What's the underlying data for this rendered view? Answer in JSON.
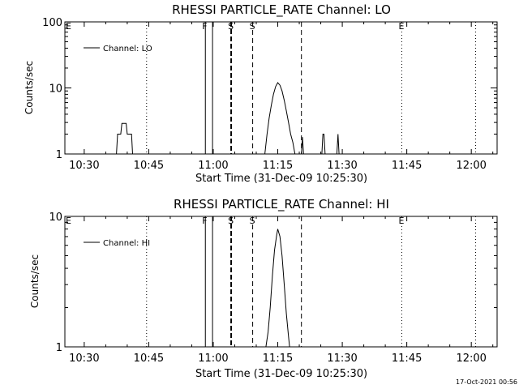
{
  "footer": {
    "timestamp": "17-Oct-2021 00:56"
  },
  "chart_data": [
    {
      "type": "line",
      "title": "RHESSI PARTICLE_RATE Channel: LO",
      "xlabel": "Start Time (31-Dec-09 10:25:30)",
      "ylabel": "Counts/sec",
      "yscale": "log",
      "ylim": [
        1,
        100
      ],
      "xlim": [
        "10:25:30",
        "12:06:00"
      ],
      "x_ticks": [
        "10:30",
        "10:45",
        "11:00",
        "11:15",
        "11:30",
        "11:45",
        "12:00"
      ],
      "y_ticks": [
        "1",
        "10",
        "100"
      ],
      "legend": "top-left",
      "series": [
        {
          "name": "Channel: LO",
          "points": [
            [
              "10:37:30",
              1
            ],
            [
              "10:37:45",
              2.0
            ],
            [
              "10:38:30",
              2.0
            ],
            [
              "10:38:45",
              2.9
            ],
            [
              "10:39:45",
              2.9
            ],
            [
              "10:40:00",
              2.0
            ],
            [
              "10:41:00",
              2.0
            ],
            [
              "10:41:15",
              1
            ],
            [
              "11:12:00",
              1
            ],
            [
              "11:12:30",
              2.0
            ],
            [
              "11:13:00",
              3.5
            ],
            [
              "11:13:30",
              5.5
            ],
            [
              "11:14:00",
              8.0
            ],
            [
              "11:14:30",
              10.5
            ],
            [
              "11:15:00",
              12.0
            ],
            [
              "11:15:30",
              11.0
            ],
            [
              "11:16:00",
              9.0
            ],
            [
              "11:16:30",
              6.5
            ],
            [
              "11:17:00",
              4.5
            ],
            [
              "11:17:30",
              3.0
            ],
            [
              "11:18:00",
              2.0
            ],
            [
              "11:18:30",
              1.5
            ],
            [
              "11:19:00",
              1
            ],
            [
              "11:20:30",
              1
            ],
            [
              "11:20:45",
              1.8
            ],
            [
              "11:21:00",
              1
            ],
            [
              "11:25:15",
              1
            ],
            [
              "11:25:30",
              2.0
            ],
            [
              "11:25:45",
              2.0
            ],
            [
              "11:26:00",
              1
            ],
            [
              "11:28:45",
              1
            ],
            [
              "11:29:00",
              2.0
            ],
            [
              "11:29:15",
              1
            ]
          ]
        }
      ],
      "markers": [
        {
          "time": "10:44:30",
          "style": "dotted",
          "label": ""
        },
        {
          "time": "10:58:10",
          "style": "solid",
          "label": "F"
        },
        {
          "time": "10:59:50",
          "style": "solid",
          "label": ""
        },
        {
          "time": "11:04:10",
          "style": "thick-dashed",
          "label": "S"
        },
        {
          "time": "11:09:10",
          "style": "dashed",
          "label": "S"
        },
        {
          "time": "11:20:30",
          "style": "dashed",
          "label": ""
        },
        {
          "time": "11:43:50",
          "style": "dotted",
          "label": "E"
        },
        {
          "time": "12:01:00",
          "style": "dotted",
          "label": ""
        }
      ],
      "edge_label": "E"
    },
    {
      "type": "line",
      "title": "RHESSI PARTICLE_RATE Channel: HI",
      "xlabel": "Start Time (31-Dec-09 10:25:30)",
      "ylabel": "Counts/sec",
      "yscale": "log",
      "ylim": [
        1,
        10
      ],
      "xlim": [
        "10:25:30",
        "12:06:00"
      ],
      "x_ticks": [
        "10:30",
        "10:45",
        "11:00",
        "11:15",
        "11:30",
        "11:45",
        "12:00"
      ],
      "y_ticks": [
        "1",
        "10"
      ],
      "legend": "top-left",
      "series": [
        {
          "name": "Channel: HI",
          "points": [
            [
              "11:12:15",
              1
            ],
            [
              "11:12:45",
              1.3
            ],
            [
              "11:13:15",
              2.0
            ],
            [
              "11:13:45",
              3.5
            ],
            [
              "11:14:15",
              5.5
            ],
            [
              "11:14:45",
              7.2
            ],
            [
              "11:15:00",
              8.0
            ],
            [
              "11:15:30",
              7.0
            ],
            [
              "11:16:00",
              5.0
            ],
            [
              "11:16:30",
              3.0
            ],
            [
              "11:17:00",
              1.8
            ],
            [
              "11:17:30",
              1.2
            ],
            [
              "11:17:45",
              1
            ]
          ]
        }
      ],
      "markers": [
        {
          "time": "10:44:30",
          "style": "dotted",
          "label": ""
        },
        {
          "time": "10:58:10",
          "style": "solid",
          "label": "F"
        },
        {
          "time": "10:59:50",
          "style": "solid",
          "label": ""
        },
        {
          "time": "11:04:10",
          "style": "thick-dashed",
          "label": "S"
        },
        {
          "time": "11:09:10",
          "style": "dashed",
          "label": "S"
        },
        {
          "time": "11:20:30",
          "style": "dashed",
          "label": ""
        },
        {
          "time": "11:43:50",
          "style": "dotted",
          "label": "E"
        },
        {
          "time": "12:01:00",
          "style": "dotted",
          "label": ""
        }
      ],
      "edge_label": "E"
    }
  ]
}
